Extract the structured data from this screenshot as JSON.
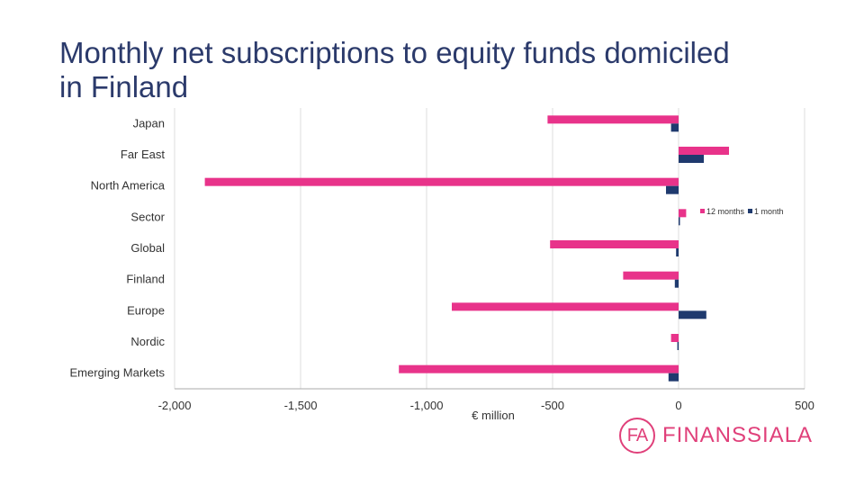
{
  "title": "Monthly net subscriptions to equity funds domiciled in Finland",
  "logo": {
    "mark": "FA",
    "text": "FINANSSIALA"
  },
  "colors": {
    "series_12m": "#e8338a",
    "series_1m": "#1f3a6e",
    "grid": "#dddddd",
    "axis": "#aaaaaa",
    "title": "#2b3a6b",
    "brand": "#e0407a"
  },
  "chart_data": {
    "type": "bar",
    "orientation": "horizontal",
    "categories": [
      "Japan",
      "Far East",
      "North America",
      "Sector",
      "Global",
      "Finland",
      "Europe",
      "Nordic",
      "Emerging Markets"
    ],
    "series": [
      {
        "name": "12 months",
        "values": [
          -520,
          200,
          -1880,
          30,
          -510,
          -220,
          -900,
          -30,
          -1110
        ]
      },
      {
        "name": "1 month",
        "values": [
          -30,
          100,
          -50,
          5,
          -10,
          -15,
          110,
          -5,
          -40
        ]
      }
    ],
    "xlim": [
      -2000,
      500
    ],
    "xticks": [
      -2000,
      -1500,
      -1000,
      -500,
      0,
      500
    ],
    "xtick_labels": [
      "-2,000",
      "-1,500",
      "-1,000",
      "-500",
      "0",
      "500"
    ],
    "xlabel": "€ million",
    "grid": "vertical",
    "legend_position": "right"
  }
}
